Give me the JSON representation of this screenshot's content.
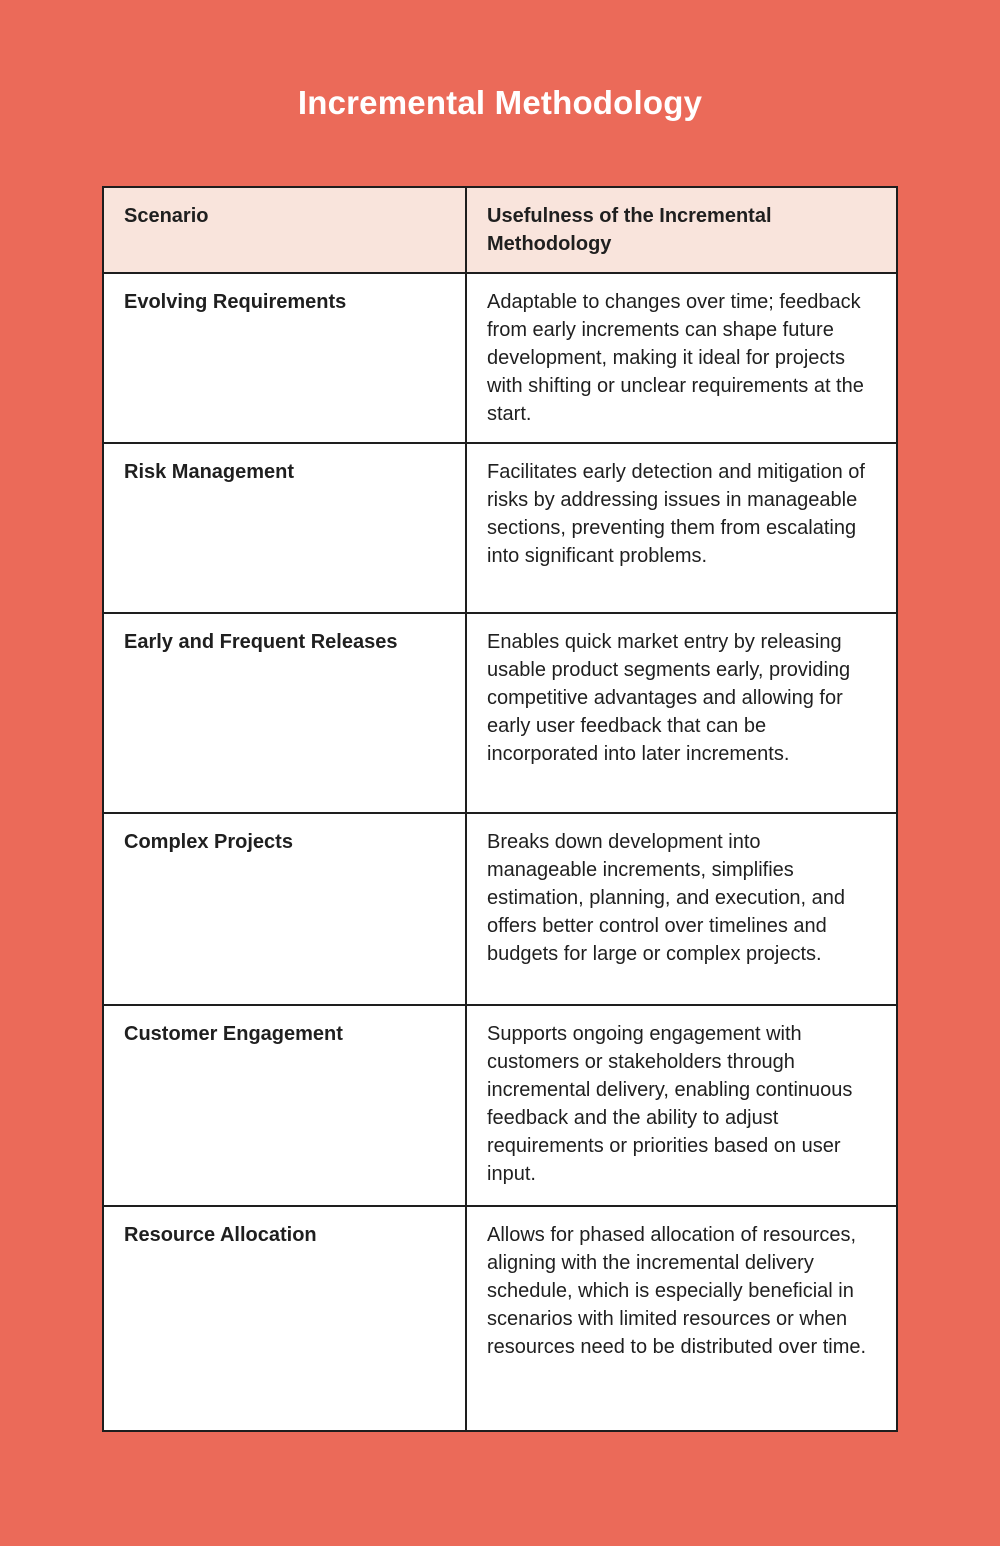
{
  "page": {
    "title": "Incremental Methodology",
    "background_color": "#EB6A59",
    "title_color": "#FFFFFF",
    "header_bg_color": "#F9E4DC",
    "cell_bg_color": "#FFFFFF",
    "border_color": "#1E1E1E",
    "text_color": "#1F1F1F"
  },
  "table": {
    "columns": [
      "Scenario",
      "Usefulness of the Incremental Methodology"
    ],
    "rows": [
      {
        "scenario": "Evolving Requirements",
        "usefulness": "Adaptable to changes over time; feedback from early increments can shape future development, making it ideal for projects with shifting or unclear requirements at the start."
      },
      {
        "scenario": "Risk Management",
        "usefulness": "Facilitates early detection and mitigation of risks by addressing issues in manageable sections, preventing them from escalating into significant problems."
      },
      {
        "scenario": "Early and Frequent Releases",
        "usefulness": "Enables quick market entry by releasing usable product segments early, providing competitive advantages and allowing for early user feedback that can be incorporated into later increments."
      },
      {
        "scenario": "Complex Projects",
        "usefulness": "Breaks down development into manageable increments, simplifies estimation, planning, and execution, and offers better control over timelines and budgets for large or complex projects."
      },
      {
        "scenario": "Customer Engagement",
        "usefulness": "Supports ongoing engagement with customers or stakeholders through incremental delivery, enabling continuous feedback and the ability to adjust requirements or priorities based on user input."
      },
      {
        "scenario": "Resource Allocation",
        "usefulness": "Allows for phased allocation of resources, aligning with the incremental delivery schedule, which is especially beneficial in scenarios with limited resources or when resources need to be distributed over time."
      }
    ]
  }
}
